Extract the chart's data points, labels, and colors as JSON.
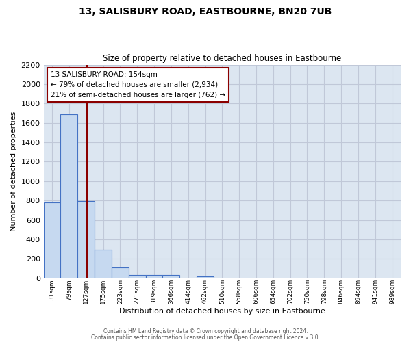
{
  "title": "13, SALISBURY ROAD, EASTBOURNE, BN20 7UB",
  "subtitle": "Size of property relative to detached houses in Eastbourne",
  "xlabel": "Distribution of detached houses by size in Eastbourne",
  "ylabel": "Number of detached properties",
  "footer_line1": "Contains HM Land Registry data © Crown copyright and database right 2024.",
  "footer_line2": "Contains public sector information licensed under the Open Government Licence v 3.0.",
  "categories": [
    "31sqm",
    "79sqm",
    "127sqm",
    "175sqm",
    "223sqm",
    "271sqm",
    "319sqm",
    "366sqm",
    "414sqm",
    "462sqm",
    "510sqm",
    "558sqm",
    "606sqm",
    "654sqm",
    "702sqm",
    "750sqm",
    "798sqm",
    "846sqm",
    "894sqm",
    "941sqm",
    "989sqm"
  ],
  "values": [
    780,
    1690,
    795,
    295,
    110,
    35,
    30,
    30,
    0,
    18,
    0,
    0,
    0,
    0,
    0,
    0,
    0,
    0,
    0,
    0,
    0
  ],
  "bar_color": "#c6d9f0",
  "bar_edge_color": "#4472c4",
  "grid_color": "#c0c8d8",
  "background_color": "#dce6f1",
  "property_label": "13 SALISBURY ROAD: 154sqm",
  "annotation_line1": "← 79% of detached houses are smaller (2,934)",
  "annotation_line2": "21% of semi-detached houses are larger (762) →",
  "vline_color": "#8b0000",
  "ylim": [
    0,
    2200
  ],
  "yticks": [
    0,
    200,
    400,
    600,
    800,
    1000,
    1200,
    1400,
    1600,
    1800,
    2000,
    2200
  ]
}
